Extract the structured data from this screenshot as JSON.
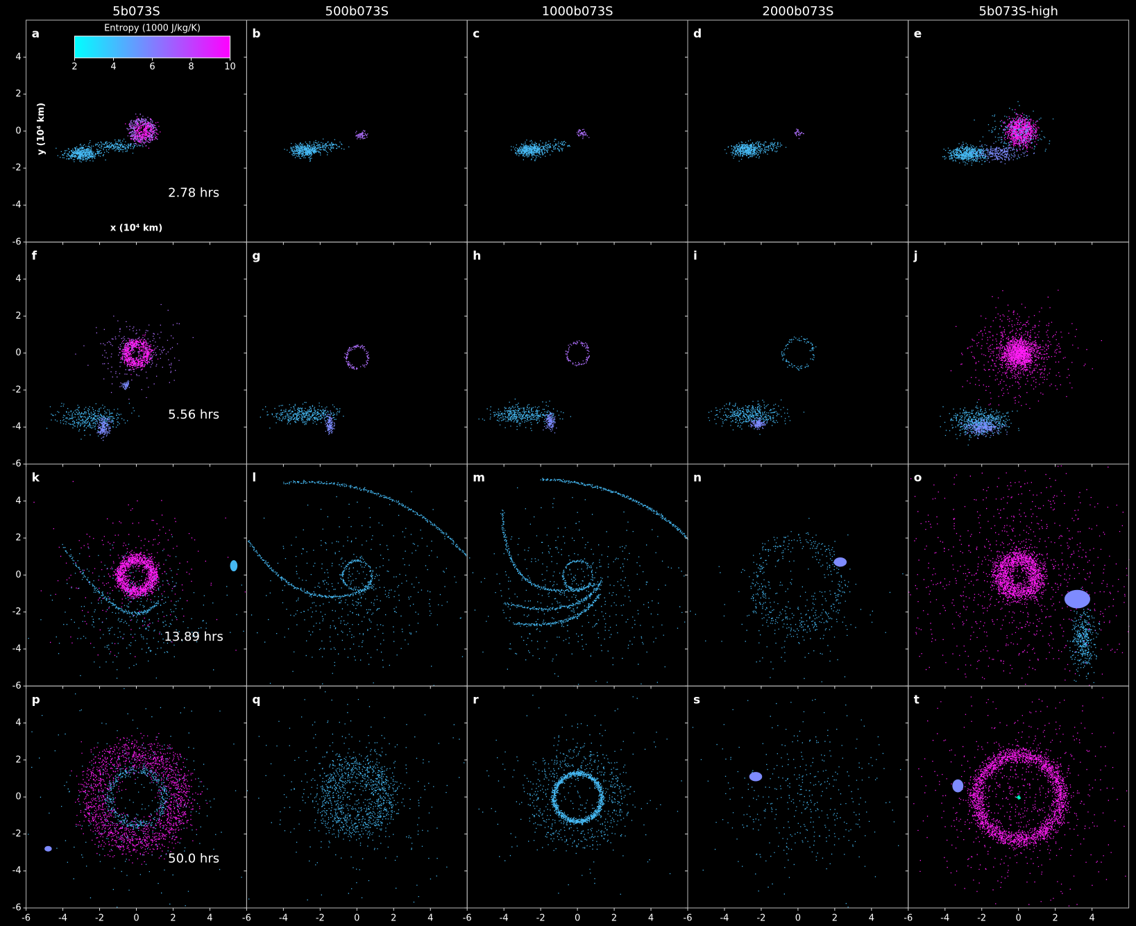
{
  "chart_data": {
    "type": "scatter",
    "columns": [
      "5b073S",
      "500b073S",
      "1000b073S",
      "2000b073S",
      "5b073S-high"
    ],
    "panels": [
      "a",
      "b",
      "c",
      "d",
      "e",
      "f",
      "g",
      "h",
      "i",
      "j",
      "k",
      "l",
      "m",
      "n",
      "o",
      "p",
      "q",
      "r",
      "s",
      "t"
    ],
    "times": [
      "2.78 hrs",
      "5.56 hrs",
      "13.89 hrs",
      "50.0 hrs"
    ],
    "xlabel": "x (10⁴ km)",
    "ylabel": "y (10⁴ km)",
    "xlim": [
      -6,
      6
    ],
    "ylim": [
      -6,
      6
    ],
    "xticks": [
      -6,
      -4,
      -2,
      0,
      2,
      4
    ],
    "yticks": [
      -6,
      -4,
      -2,
      0,
      2,
      4
    ],
    "colorbar": {
      "label": "Entropy (1000 J/kg/K)",
      "lim": [
        2,
        10
      ],
      "ticks": [
        2,
        4,
        6,
        8,
        10
      ],
      "colors": [
        "#00ffff",
        "#ff00ff"
      ]
    }
  }
}
